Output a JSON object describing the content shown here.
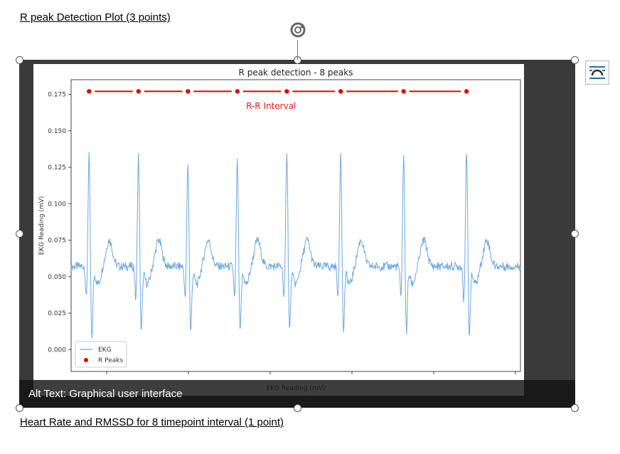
{
  "document": {
    "heading_top": "R peak Detection Plot (3 points)",
    "heading_bottom": "Heart Rate and RMSSD for 8 timepoint interval (1 point)"
  },
  "image": {
    "alt_text": "Alt Text: Graphical user interface"
  },
  "icons": {
    "rotate": "rotate-handle-icon",
    "layout_options": "layout-options-icon"
  },
  "chart_data": {
    "type": "line",
    "title": "R peak detection - 8 peaks",
    "xlabel": "EKG Reading (mV)",
    "ylabel": "EKG Reading (mV)",
    "ylim": [
      -0.015,
      0.185
    ],
    "yticks": [
      "0.000",
      "0.025",
      "0.050",
      "0.075",
      "0.100",
      "0.125",
      "0.150",
      "0.175"
    ],
    "annotation": "R-R Interval",
    "legend": {
      "placement": "lower-left",
      "entries": [
        "EKG",
        "R Peaks"
      ]
    },
    "colors": {
      "ekg": "#6fa8dc",
      "peaks": "#e00000"
    },
    "r_peaks": {
      "name": "R Peaks",
      "x": [
        0.04,
        0.15,
        0.26,
        0.37,
        0.48,
        0.6,
        0.74,
        0.88
      ],
      "y": [
        0.177,
        0.177,
        0.177,
        0.177,
        0.177,
        0.177,
        0.177,
        0.177
      ]
    },
    "ekg": {
      "name": "EKG",
      "peak_heights": [
        0.134,
        0.134,
        0.129,
        0.13,
        0.138,
        0.137,
        0.134,
        0.136
      ],
      "trough_depths": [
        0.006,
        0.011,
        0.011,
        0.011,
        0.012,
        0.011,
        0.011,
        0.01
      ],
      "baseline": 0.057
    }
  }
}
